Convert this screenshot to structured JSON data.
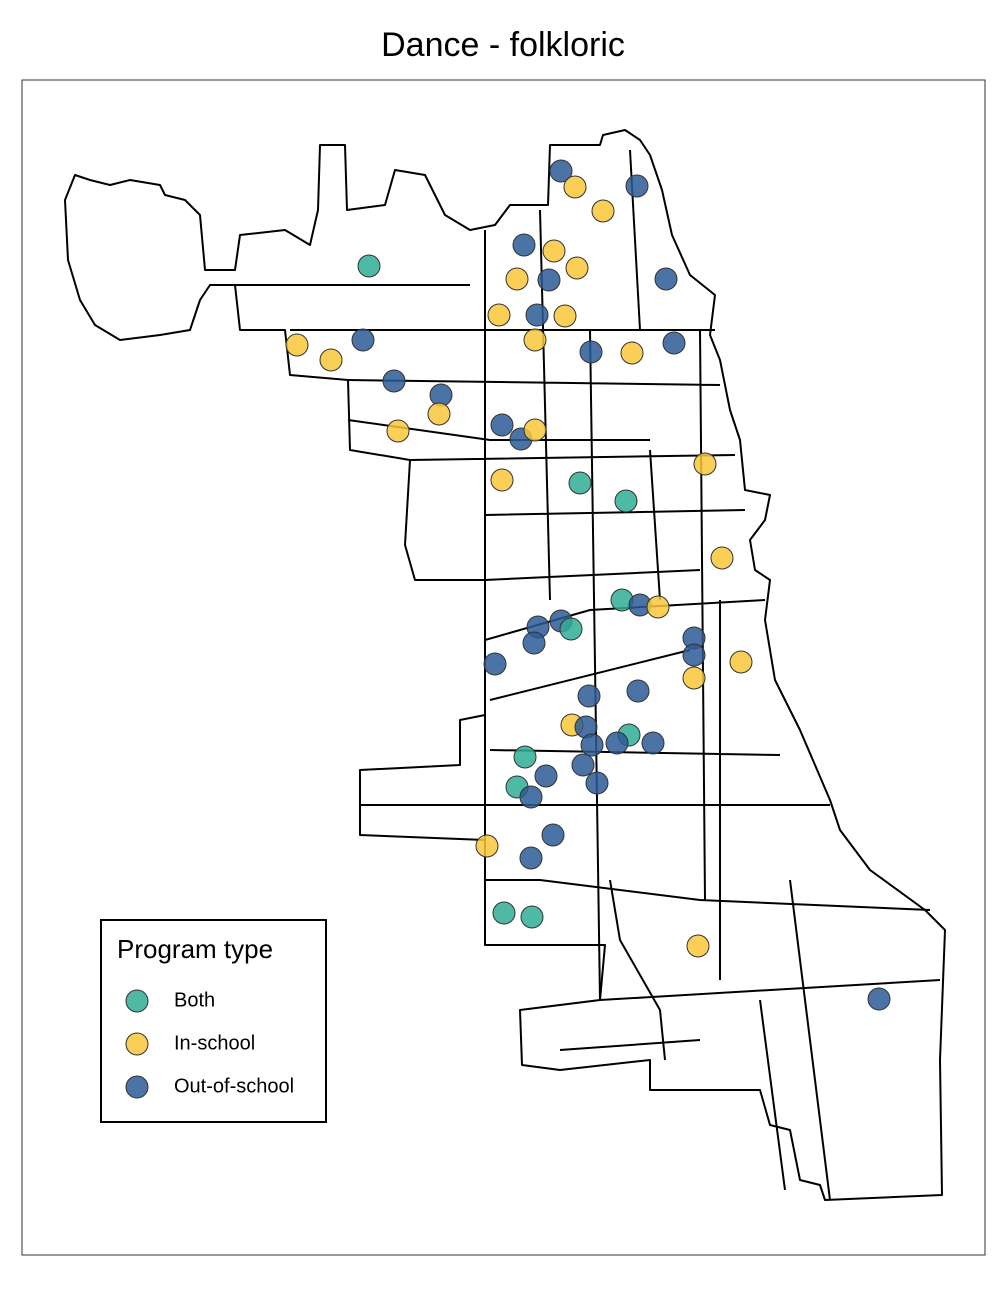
{
  "title": "Dance - folkloric",
  "legend": {
    "title": "Program type",
    "entries": [
      {
        "label": "Both",
        "color": "#2fae95"
      },
      {
        "label": "In-school",
        "color": "#f9c73a"
      },
      {
        "label": "Out-of-school",
        "color": "#2b5b95"
      }
    ]
  }
}
